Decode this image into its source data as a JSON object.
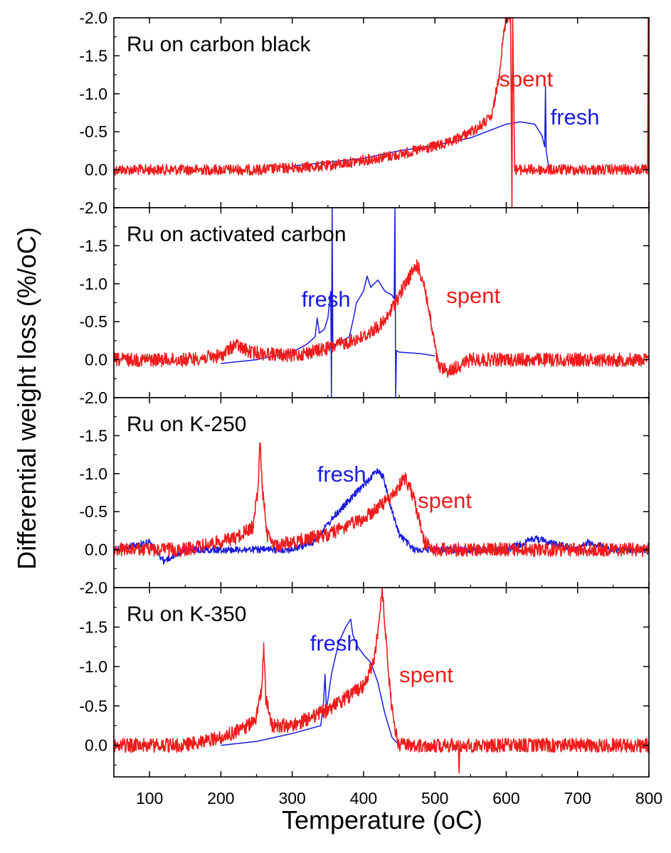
{
  "chart_data": {
    "type": "line",
    "xlabel": "Temperature (oC)",
    "ylabel": "Differential weight loss (%/oC)",
    "xlim": [
      50,
      800
    ],
    "x_ticks": [
      100,
      200,
      300,
      400,
      500,
      600,
      700,
      800
    ],
    "y_tick_labels": [
      "-2.0",
      "-1.5",
      "-1.0",
      "-0.5",
      "0.0"
    ],
    "grid": false,
    "colors": {
      "fresh": "#1a1adf",
      "spent": "#ee1c1c"
    },
    "panels": [
      {
        "title": "Ru on carbon black",
        "ylim": [
          -2.0,
          0.5
        ],
        "series": [
          {
            "name": "spent",
            "x": [
              50,
              150,
              250,
              350,
              450,
              520,
              560,
              580,
              590,
              596,
              600,
              602,
              606,
              608,
              609,
              612,
              650,
              700,
              750,
              790,
              798,
              799,
              800
            ],
            "y": [
              0.0,
              0.0,
              0.0,
              -0.05,
              -0.2,
              -0.35,
              -0.55,
              -0.7,
              -1.25,
              -1.75,
              -2.0,
              -2.0,
              -2.0,
              0.5,
              -2.0,
              0.0,
              0.0,
              0.0,
              0.0,
              0.0,
              0.0,
              -2.0,
              0.5
            ]
          },
          {
            "name": "fresh",
            "x": [
              300,
              400,
              450,
              500,
              550,
              600,
              620,
              640,
              650,
              654,
              655,
              656,
              660
            ],
            "y": [
              -0.05,
              -0.15,
              -0.25,
              -0.32,
              -0.42,
              -0.6,
              -0.63,
              -0.6,
              -0.45,
              -0.3,
              -1.1,
              -0.25,
              0.0
            ]
          }
        ],
        "annotations": [
          {
            "text": "spent",
            "x": 590,
            "y": -1.2
          },
          {
            "text": "fresh",
            "x": 662,
            "y": -0.7
          }
        ]
      },
      {
        "title": "Ru on activated carbon",
        "ylim": [
          -2.0,
          0.5
        ],
        "series": [
          {
            "name": "fresh",
            "x": [
              200,
              250,
              300,
              320,
              332,
              335,
              338,
              345,
              350,
              354,
              355,
              356,
              357,
              360,
              380,
              386,
              390,
              400,
              405,
              410,
              420,
              430,
              440,
              443,
              444,
              445,
              446,
              450,
              480,
              500
            ],
            "y": [
              0.05,
              0.0,
              -0.1,
              -0.2,
              -0.3,
              -0.55,
              -0.35,
              -0.4,
              -0.55,
              -0.9,
              0.5,
              -2.0,
              -0.15,
              -0.2,
              -0.3,
              -0.55,
              -0.75,
              -0.9,
              -1.1,
              -0.95,
              -1.05,
              -0.9,
              -0.85,
              -0.8,
              -2.0,
              0.5,
              -0.12,
              -0.1,
              -0.08,
              -0.05
            ]
          },
          {
            "name": "spent",
            "x": [
              50,
              150,
              200,
              220,
              240,
              300,
              350,
              400,
              430,
              450,
              465,
              475,
              485,
              495,
              505,
              520,
              550,
              600,
              700,
              800
            ],
            "y": [
              0.0,
              0.0,
              -0.05,
              -0.2,
              -0.1,
              -0.05,
              -0.15,
              -0.3,
              -0.5,
              -0.85,
              -1.1,
              -1.25,
              -1.0,
              -0.45,
              0.1,
              0.15,
              0.0,
              0.0,
              0.0,
              0.0
            ]
          }
        ],
        "annotations": [
          {
            "text": "fresh",
            "x": 313,
            "y": -0.8
          },
          {
            "text": "spent",
            "x": 516,
            "y": -0.85
          }
        ]
      },
      {
        "title": "Ru on K-250",
        "ylim": [
          -2.0,
          0.5
        ],
        "series": [
          {
            "name": "fresh",
            "x": [
              50,
              100,
              120,
              150,
              200,
              250,
              300,
              330,
              360,
              390,
              410,
              420,
              428,
              440,
              450,
              470,
              500,
              600,
              640,
              700,
              715,
              750,
              800
            ],
            "y": [
              0.0,
              -0.1,
              0.15,
              0.0,
              0.0,
              0.0,
              0.0,
              -0.1,
              -0.45,
              -0.75,
              -0.95,
              -1.05,
              -0.95,
              -0.5,
              -0.2,
              0.0,
              0.0,
              0.0,
              -0.15,
              0.0,
              -0.1,
              0.0,
              0.0
            ]
          },
          {
            "name": "spent",
            "x": [
              50,
              150,
              220,
              245,
              252,
              255,
              258,
              265,
              275,
              300,
              350,
              400,
              440,
              458,
              470,
              485,
              500,
              550,
              600,
              700,
              800
            ],
            "y": [
              0.0,
              0.0,
              -0.15,
              -0.3,
              -0.8,
              -1.4,
              -0.8,
              -0.2,
              -0.05,
              -0.1,
              -0.2,
              -0.4,
              -0.7,
              -0.95,
              -0.7,
              -0.1,
              0.0,
              0.0,
              0.0,
              0.0,
              0.0
            ]
          }
        ],
        "annotations": [
          {
            "text": "fresh",
            "x": 335,
            "y": -1.0
          },
          {
            "text": "spent",
            "x": 476,
            "y": -0.65
          }
        ]
      },
      {
        "title": "Ru on K-350",
        "ylim": [
          -2.0,
          0.4
        ],
        "series": [
          {
            "name": "fresh",
            "x": [
              200,
              250,
              300,
              340,
              344,
              346,
              348,
              355,
              365,
              375,
              382,
              385,
              392,
              400,
              410,
              420,
              430,
              440,
              450
            ],
            "y": [
              0.0,
              -0.05,
              -0.15,
              -0.25,
              -0.55,
              -0.9,
              -0.45,
              -0.9,
              -1.3,
              -1.5,
              -1.6,
              -1.4,
              -1.25,
              -1.15,
              -1.05,
              -0.8,
              -0.4,
              -0.1,
              0.0
            ]
          },
          {
            "name": "spent",
            "x": [
              50,
              150,
              200,
              230,
              250,
              257,
              260,
              263,
              272,
              300,
              350,
              400,
              415,
              422,
              426,
              430,
              438,
              448,
              470,
              533,
              534,
              535,
              600,
              700,
              800
            ],
            "y": [
              0.0,
              0.0,
              -0.1,
              -0.2,
              -0.35,
              -0.7,
              -1.3,
              -0.6,
              -0.25,
              -0.25,
              -0.45,
              -0.75,
              -1.1,
              -1.6,
              -2.0,
              -1.5,
              -0.6,
              0.0,
              0.0,
              0.0,
              0.35,
              0.0,
              0.0,
              0.0,
              0.0
            ]
          }
        ],
        "annotations": [
          {
            "text": "fresh",
            "x": 325,
            "y": -1.3
          },
          {
            "text": "spent",
            "x": 450,
            "y": -0.9
          }
        ]
      }
    ]
  }
}
